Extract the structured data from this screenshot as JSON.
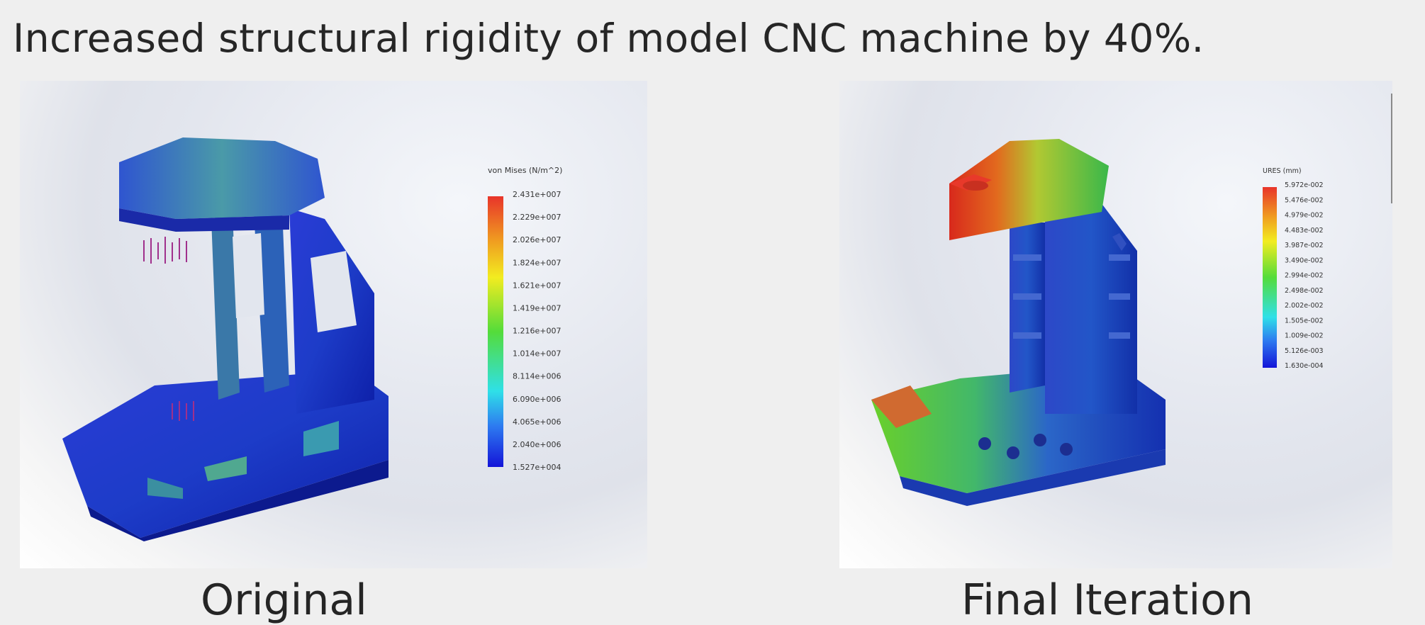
{
  "slide": {
    "title": "Increased structural rigidity of model CNC machine by 40%.",
    "left": {
      "caption": "Original",
      "legend_title": "von Mises (N/m^2)",
      "legend_ticks": [
        "2.431e+007",
        "2.229e+007",
        "2.026e+007",
        "1.824e+007",
        "1.621e+007",
        "1.419e+007",
        "1.216e+007",
        "1.014e+007",
        "8.114e+006",
        "6.090e+006",
        "4.065e+006",
        "2.040e+006",
        "1.527e+004"
      ]
    },
    "right": {
      "caption": "Final Iteration",
      "legend_title": "URES (mm)",
      "legend_ticks": [
        "5.972e-002",
        "5.476e-002",
        "4.979e-002",
        "4.483e-002",
        "3.987e-002",
        "3.490e-002",
        "2.994e-002",
        "2.498e-002",
        "2.002e-002",
        "1.505e-002",
        "1.009e-002",
        "5.126e-003",
        "1.630e-004"
      ]
    },
    "colors": {
      "legend_top": "#e8342a",
      "legend_bottom": "#1414d8",
      "load_arrows": "#a0308c"
    }
  }
}
